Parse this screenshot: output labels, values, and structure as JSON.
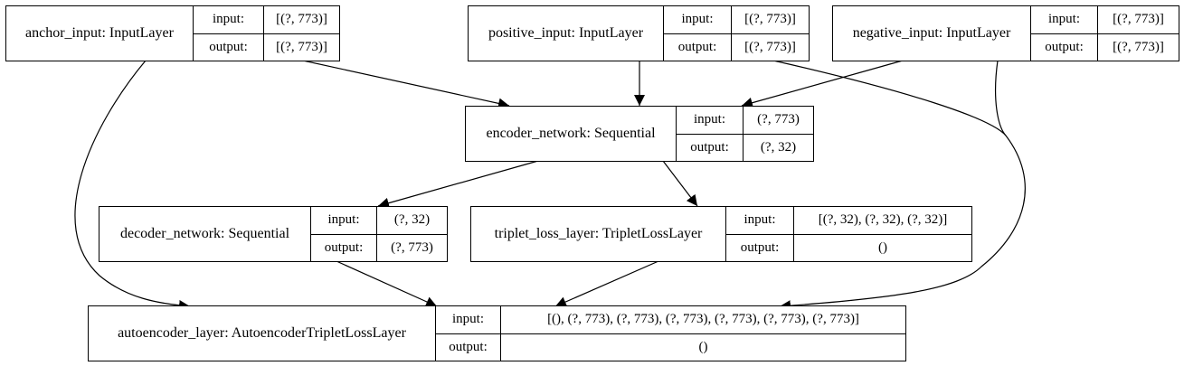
{
  "diagram": {
    "nodes": {
      "anchor_input": {
        "label": "anchor_input: InputLayer",
        "input_label": "input:",
        "output_label": "output:",
        "input_value": "[(?, 773)]",
        "output_value": "[(?, 773)]"
      },
      "positive_input": {
        "label": "positive_input: InputLayer",
        "input_label": "input:",
        "output_label": "output:",
        "input_value": "[(?, 773)]",
        "output_value": "[(?, 773)]"
      },
      "negative_input": {
        "label": "negative_input: InputLayer",
        "input_label": "input:",
        "output_label": "output:",
        "input_value": "[(?, 773)]",
        "output_value": "[(?, 773)]"
      },
      "encoder_network": {
        "label": "encoder_network: Sequential",
        "input_label": "input:",
        "output_label": "output:",
        "input_value": "(?, 773)",
        "output_value": "(?, 32)"
      },
      "decoder_network": {
        "label": "decoder_network: Sequential",
        "input_label": "input:",
        "output_label": "output:",
        "input_value": "(?, 32)",
        "output_value": "(?, 773)"
      },
      "triplet_loss_layer": {
        "label": "triplet_loss_layer: TripletLossLayer",
        "input_label": "input:",
        "output_label": "output:",
        "input_value": "[(?, 32), (?, 32), (?, 32)]",
        "output_value": "()"
      },
      "autoencoder_layer": {
        "label": "autoencoder_layer: AutoencoderTripletLossLayer",
        "input_label": "input:",
        "output_label": "output:",
        "input_value": "[(), (?, 773), (?, 773), (?, 773), (?, 773), (?, 773), (?, 773)]",
        "output_value": "()"
      }
    },
    "edges": [
      {
        "from": "anchor_input",
        "to": "encoder_network"
      },
      {
        "from": "positive_input",
        "to": "encoder_network"
      },
      {
        "from": "negative_input",
        "to": "encoder_network"
      },
      {
        "from": "encoder_network",
        "to": "decoder_network"
      },
      {
        "from": "encoder_network",
        "to": "triplet_loss_layer"
      },
      {
        "from": "anchor_input",
        "to": "autoencoder_layer"
      },
      {
        "from": "decoder_network",
        "to": "autoencoder_layer"
      },
      {
        "from": "triplet_loss_layer",
        "to": "autoencoder_layer"
      },
      {
        "from": "positive_input",
        "to": "autoencoder_layer"
      },
      {
        "from": "negative_input",
        "to": "autoencoder_layer"
      }
    ]
  }
}
